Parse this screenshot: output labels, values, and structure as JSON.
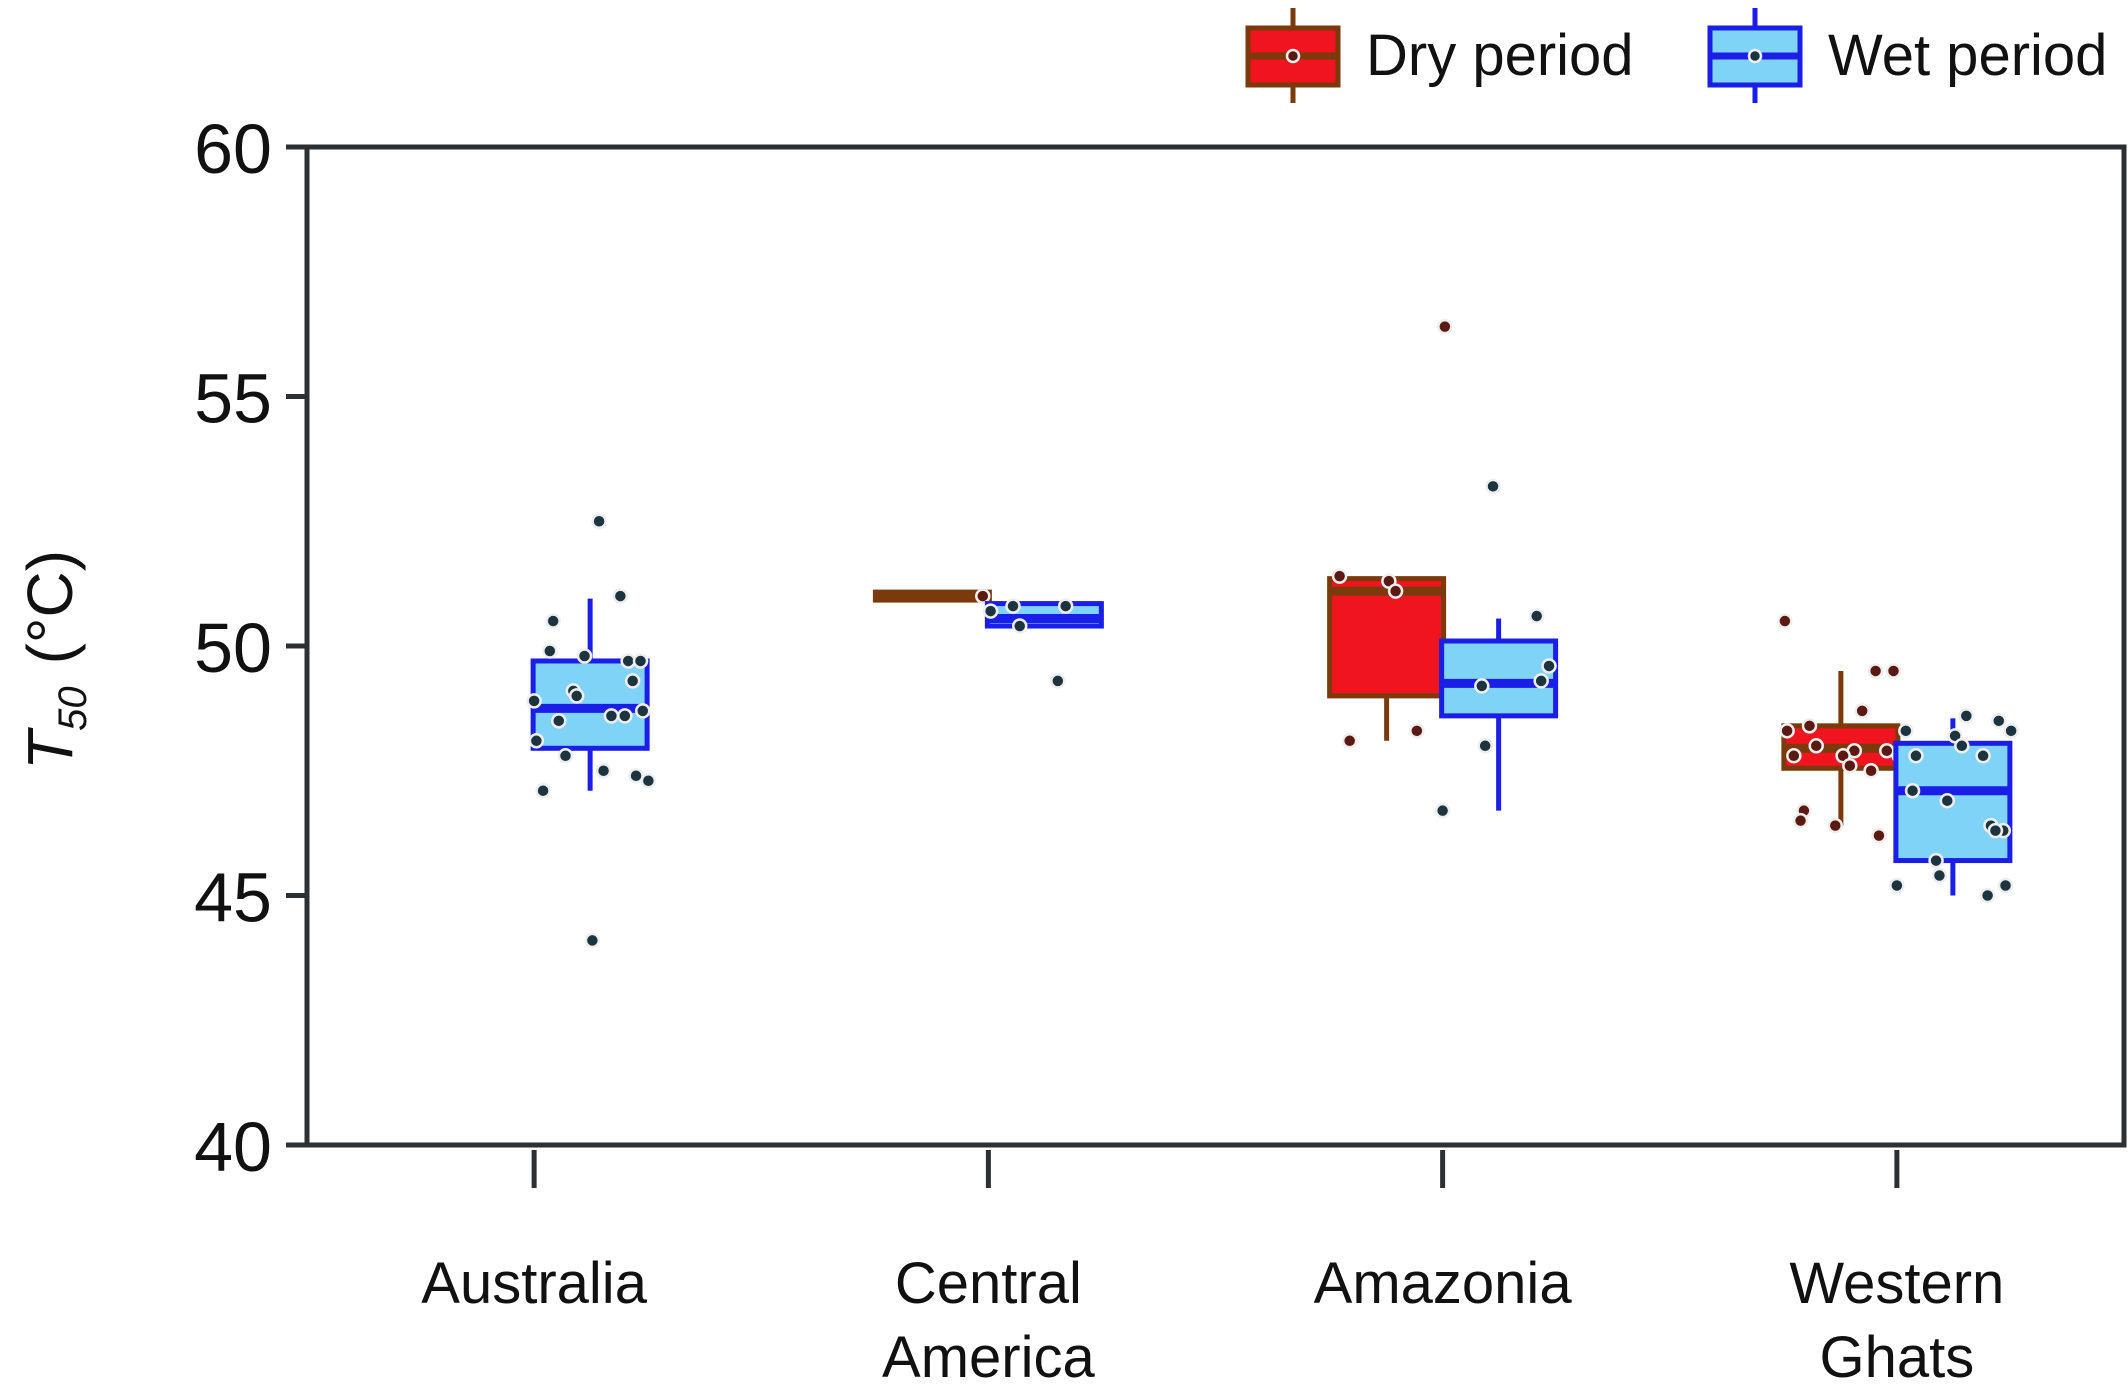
{
  "chart_data": {
    "type": "box",
    "title": "",
    "xlabel": "",
    "ylabel": {
      "symbol": "T",
      "subscript": "50",
      "unit": "(°C)"
    },
    "ylim": [
      40,
      60
    ],
    "yticks": [
      40,
      45,
      50,
      55,
      60
    ],
    "categories": [
      "Australia",
      "Central America",
      "Amazonia",
      "Western Ghats"
    ],
    "category_lines": [
      [
        "Australia"
      ],
      [
        "Central",
        "America"
      ],
      [
        "Amazonia"
      ],
      [
        "Western",
        "Ghats"
      ]
    ],
    "grid": false,
    "legend_position": "top-right",
    "series": [
      {
        "name": "Dry period",
        "fill": "#f0141e",
        "stroke": "#7a3a0c",
        "point_fill": "#5a1a12",
        "boxes": [
          null,
          {
            "q1": 50.92,
            "median": 51.0,
            "q3": 51.08,
            "whisker_low": 50.92,
            "whisker_high": 51.08
          },
          {
            "q1": 49.0,
            "median": 51.1,
            "q3": 51.35,
            "whisker_low": 48.1,
            "whisker_high": 51.35
          },
          {
            "q1": 47.55,
            "median": 47.95,
            "q3": 48.4,
            "whisker_low": 46.4,
            "whisker_high": 49.5
          }
        ],
        "points": [
          [],
          [
            51.0
          ],
          [
            56.4,
            51.4,
            51.3,
            51.1,
            48.3,
            48.1
          ],
          [
            50.5,
            49.5,
            49.5,
            48.7,
            48.4,
            48.3,
            48.0,
            47.9,
            47.9,
            47.8,
            47.8,
            47.8,
            47.6,
            47.5,
            46.7,
            46.5,
            46.4,
            46.2
          ]
        ]
      },
      {
        "name": "Wet period",
        "fill": "#7fd3f7",
        "stroke": "#1b1ee6",
        "point_fill": "#1c3340",
        "boxes": [
          {
            "q1": 47.95,
            "median": 48.75,
            "q3": 49.7,
            "whisker_low": 47.1,
            "whisker_high": 50.95
          },
          {
            "q1": 50.4,
            "median": 50.55,
            "q3": 50.85,
            "whisker_low": 50.4,
            "whisker_high": 50.85
          },
          {
            "q1": 48.6,
            "median": 49.25,
            "q3": 50.1,
            "whisker_low": 46.7,
            "whisker_high": 50.55
          },
          {
            "q1": 45.7,
            "median": 47.1,
            "q3": 48.05,
            "whisker_low": 45.0,
            "whisker_high": 48.55
          }
        ],
        "points": [
          [
            52.5,
            51.0,
            50.5,
            49.9,
            49.8,
            49.7,
            49.7,
            49.3,
            49.1,
            49.0,
            48.9,
            48.7,
            48.6,
            48.6,
            48.5,
            48.1,
            47.8,
            47.5,
            47.4,
            47.3,
            47.1,
            44.1
          ],
          [
            50.8,
            50.8,
            50.7,
            50.4,
            49.3
          ],
          [
            53.2,
            50.6,
            49.6,
            49.3,
            49.2,
            48.0,
            46.7
          ],
          [
            48.6,
            48.5,
            48.3,
            48.3,
            48.2,
            48.0,
            47.8,
            47.8,
            47.1,
            46.9,
            46.4,
            46.3,
            46.3,
            45.7,
            45.4,
            45.2,
            45.2,
            45.0
          ]
        ]
      }
    ]
  }
}
